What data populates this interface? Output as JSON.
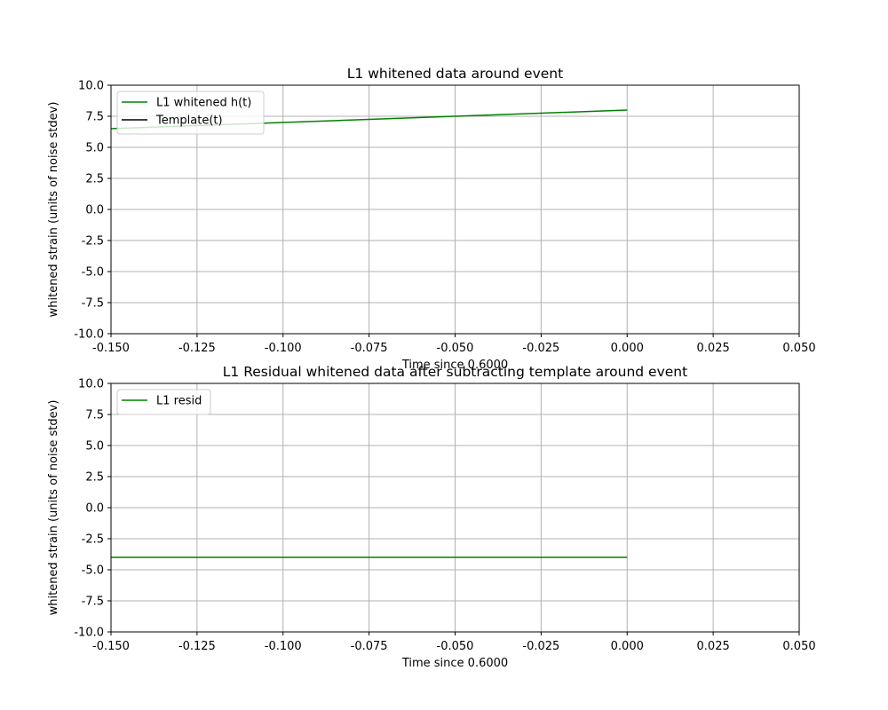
{
  "chart_data": [
    {
      "type": "line",
      "title": "L1 whitened data around event",
      "xlabel": "Time since 0.6000",
      "ylabel": "whitened strain (units of noise stdev)",
      "xlim": [
        -0.15,
        0.05
      ],
      "ylim": [
        -10,
        10
      ],
      "xticks": [
        "-0.150",
        "-0.125",
        "-0.100",
        "-0.075",
        "-0.050",
        "-0.025",
        "0.000",
        "0.025",
        "0.050"
      ],
      "yticks": [
        "10.0",
        "7.5",
        "5.0",
        "2.5",
        "0.0",
        "-2.5",
        "-5.0",
        "-7.5",
        "-10.0"
      ],
      "grid": true,
      "legend_position": "upper-left",
      "series": [
        {
          "name": "L1 whitened h(t)",
          "color": "#008000",
          "x": [
            -0.15,
            -0.125,
            -0.1,
            -0.075,
            -0.05,
            -0.025,
            0.0
          ],
          "y": [
            6.5,
            6.75,
            7.0,
            7.25,
            7.5,
            7.75,
            8.0
          ]
        },
        {
          "name": "Template(t)",
          "color": "#000000",
          "x": [],
          "y": []
        }
      ]
    },
    {
      "type": "line",
      "title": "L1 Residual whitened data after subtracting template around event",
      "xlabel": "Time since 0.6000",
      "ylabel": "whitened strain (units of noise stdev)",
      "xlim": [
        -0.15,
        0.05
      ],
      "ylim": [
        -10,
        10
      ],
      "xticks": [
        "-0.150",
        "-0.125",
        "-0.100",
        "-0.075",
        "-0.050",
        "-0.025",
        "0.000",
        "0.025",
        "0.050"
      ],
      "yticks": [
        "10.0",
        "7.5",
        "5.0",
        "2.5",
        "0.0",
        "-2.5",
        "-5.0",
        "-7.5",
        "-10.0"
      ],
      "grid": true,
      "legend_position": "upper-left",
      "series": [
        {
          "name": "L1 resid",
          "color": "#008000",
          "x": [
            -0.15,
            0.0
          ],
          "y": [
            -4.0,
            -4.0
          ]
        }
      ]
    }
  ]
}
